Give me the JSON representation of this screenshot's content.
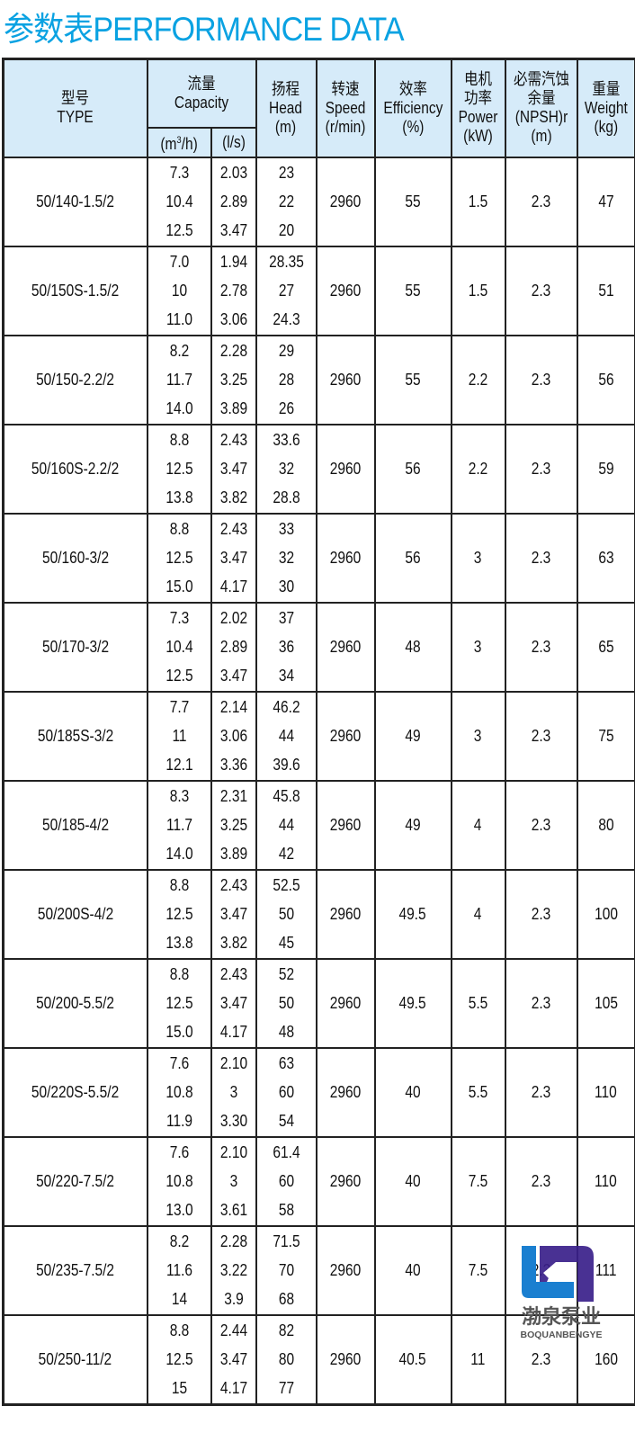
{
  "title": "参数表PERFORMANCE DATA",
  "colors": {
    "title": "#0aa2e2",
    "header_bg": "#d6ebf9",
    "logo_blue": "#1a7fd0",
    "logo_purple": "#3a1f8a"
  },
  "headers": {
    "type_cn": "型号",
    "type_en": "TYPE",
    "capacity_cn": "流量",
    "capacity_en": "Capacity",
    "cap_unit1_a": "(m",
    "cap_unit1_sup": "3",
    "cap_unit1_b": "/h)",
    "cap_unit2": "(l/s)",
    "head_cn": "扬程",
    "head_en": "Head",
    "head_unit": "(m)",
    "speed_cn": "转速",
    "speed_en": "Speed",
    "speed_unit": "(r/min)",
    "eff_cn": "效率",
    "eff_en": "Efficiency",
    "eff_unit": "(%)",
    "power_cn1": "电机",
    "power_cn2": "功率",
    "power_en": "Power",
    "power_unit": "(kW)",
    "npsh_cn1": "必需汽蚀",
    "npsh_cn2": "余量",
    "npsh_en": "(NPSH)r",
    "npsh_unit": "(m)",
    "weight_cn": "重量",
    "weight_en": "Weight",
    "weight_unit": "(kg)"
  },
  "rows": [
    {
      "type": "50/140-1.5/2",
      "q": [
        "7.3",
        "10.4",
        "12.5"
      ],
      "l": [
        "2.03",
        "2.89",
        "3.47"
      ],
      "h": [
        "23",
        "22",
        "20"
      ],
      "speed": "2960",
      "eff": "55",
      "power": "1.5",
      "npsh": "2.3",
      "weight": "47"
    },
    {
      "type": "50/150S-1.5/2",
      "q": [
        "7.0",
        "10",
        "11.0"
      ],
      "l": [
        "1.94",
        "2.78",
        "3.06"
      ],
      "h": [
        "28.35",
        "27",
        "24.3"
      ],
      "speed": "2960",
      "eff": "55",
      "power": "1.5",
      "npsh": "2.3",
      "weight": "51"
    },
    {
      "type": "50/150-2.2/2",
      "q": [
        "8.2",
        "11.7",
        "14.0"
      ],
      "l": [
        "2.28",
        "3.25",
        "3.89"
      ],
      "h": [
        "29",
        "28",
        "26"
      ],
      "speed": "2960",
      "eff": "55",
      "power": "2.2",
      "npsh": "2.3",
      "weight": "56"
    },
    {
      "type": "50/160S-2.2/2",
      "q": [
        "8.8",
        "12.5",
        "13.8"
      ],
      "l": [
        "2.43",
        "3.47",
        "3.82"
      ],
      "h": [
        "33.6",
        "32",
        "28.8"
      ],
      "speed": "2960",
      "eff": "56",
      "power": "2.2",
      "npsh": "2.3",
      "weight": "59"
    },
    {
      "type": "50/160-3/2",
      "q": [
        "8.8",
        "12.5",
        "15.0"
      ],
      "l": [
        "2.43",
        "3.47",
        "4.17"
      ],
      "h": [
        "33",
        "32",
        "30"
      ],
      "speed": "2960",
      "eff": "56",
      "power": "3",
      "npsh": "2.3",
      "weight": "63"
    },
    {
      "type": "50/170-3/2",
      "q": [
        "7.3",
        "10.4",
        "12.5"
      ],
      "l": [
        "2.02",
        "2.89",
        "3.47"
      ],
      "h": [
        "37",
        "36",
        "34"
      ],
      "speed": "2960",
      "eff": "48",
      "power": "3",
      "npsh": "2.3",
      "weight": "65"
    },
    {
      "type": "50/185S-3/2",
      "q": [
        "7.7",
        "11",
        "12.1"
      ],
      "l": [
        "2.14",
        "3.06",
        "3.36"
      ],
      "h": [
        "46.2",
        "44",
        "39.6"
      ],
      "speed": "2960",
      "eff": "49",
      "power": "3",
      "npsh": "2.3",
      "weight": "75"
    },
    {
      "type": "50/185-4/2",
      "q": [
        "8.3",
        "11.7",
        "14.0"
      ],
      "l": [
        "2.31",
        "3.25",
        "3.89"
      ],
      "h": [
        "45.8",
        "44",
        "42"
      ],
      "speed": "2960",
      "eff": "49",
      "power": "4",
      "npsh": "2.3",
      "weight": "80"
    },
    {
      "type": "50/200S-4/2",
      "q": [
        "8.8",
        "12.5",
        "13.8"
      ],
      "l": [
        "2.43",
        "3.47",
        "3.82"
      ],
      "h": [
        "52.5",
        "50",
        "45"
      ],
      "speed": "2960",
      "eff": "49.5",
      "power": "4",
      "npsh": "2.3",
      "weight": "100"
    },
    {
      "type": "50/200-5.5/2",
      "q": [
        "8.8",
        "12.5",
        "15.0"
      ],
      "l": [
        "2.43",
        "3.47",
        "4.17"
      ],
      "h": [
        "52",
        "50",
        "48"
      ],
      "speed": "2960",
      "eff": "49.5",
      "power": "5.5",
      "npsh": "2.3",
      "weight": "105"
    },
    {
      "type": "50/220S-5.5/2",
      "q": [
        "7.6",
        "10.8",
        "11.9"
      ],
      "l": [
        "2.10",
        "3",
        "3.30"
      ],
      "h": [
        "63",
        "60",
        "54"
      ],
      "speed": "2960",
      "eff": "40",
      "power": "5.5",
      "npsh": "2.3",
      "weight": "110"
    },
    {
      "type": "50/220-7.5/2",
      "q": [
        "7.6",
        "10.8",
        "13.0"
      ],
      "l": [
        "2.10",
        "3",
        "3.61"
      ],
      "h": [
        "61.4",
        "60",
        "58"
      ],
      "speed": "2960",
      "eff": "40",
      "power": "7.5",
      "npsh": "2.3",
      "weight": "110"
    },
    {
      "type": "50/235-7.5/2",
      "q": [
        "8.2",
        "11.6",
        "14"
      ],
      "l": [
        "2.28",
        "3.22",
        "3.9"
      ],
      "h": [
        "71.5",
        "70",
        "68"
      ],
      "speed": "2960",
      "eff": "40",
      "power": "7.5",
      "npsh": "2.3",
      "weight": "111"
    },
    {
      "type": "50/250-11/2",
      "q": [
        "8.8",
        "12.5",
        "15"
      ],
      "l": [
        "2.44",
        "3.47",
        "4.17"
      ],
      "h": [
        "82",
        "80",
        "77"
      ],
      "speed": "2960",
      "eff": "40.5",
      "power": "11",
      "npsh": "2.3",
      "weight": "160"
    }
  ],
  "logo": {
    "cn": "渤泉泵业",
    "en": "BOQUANBENGYE"
  }
}
